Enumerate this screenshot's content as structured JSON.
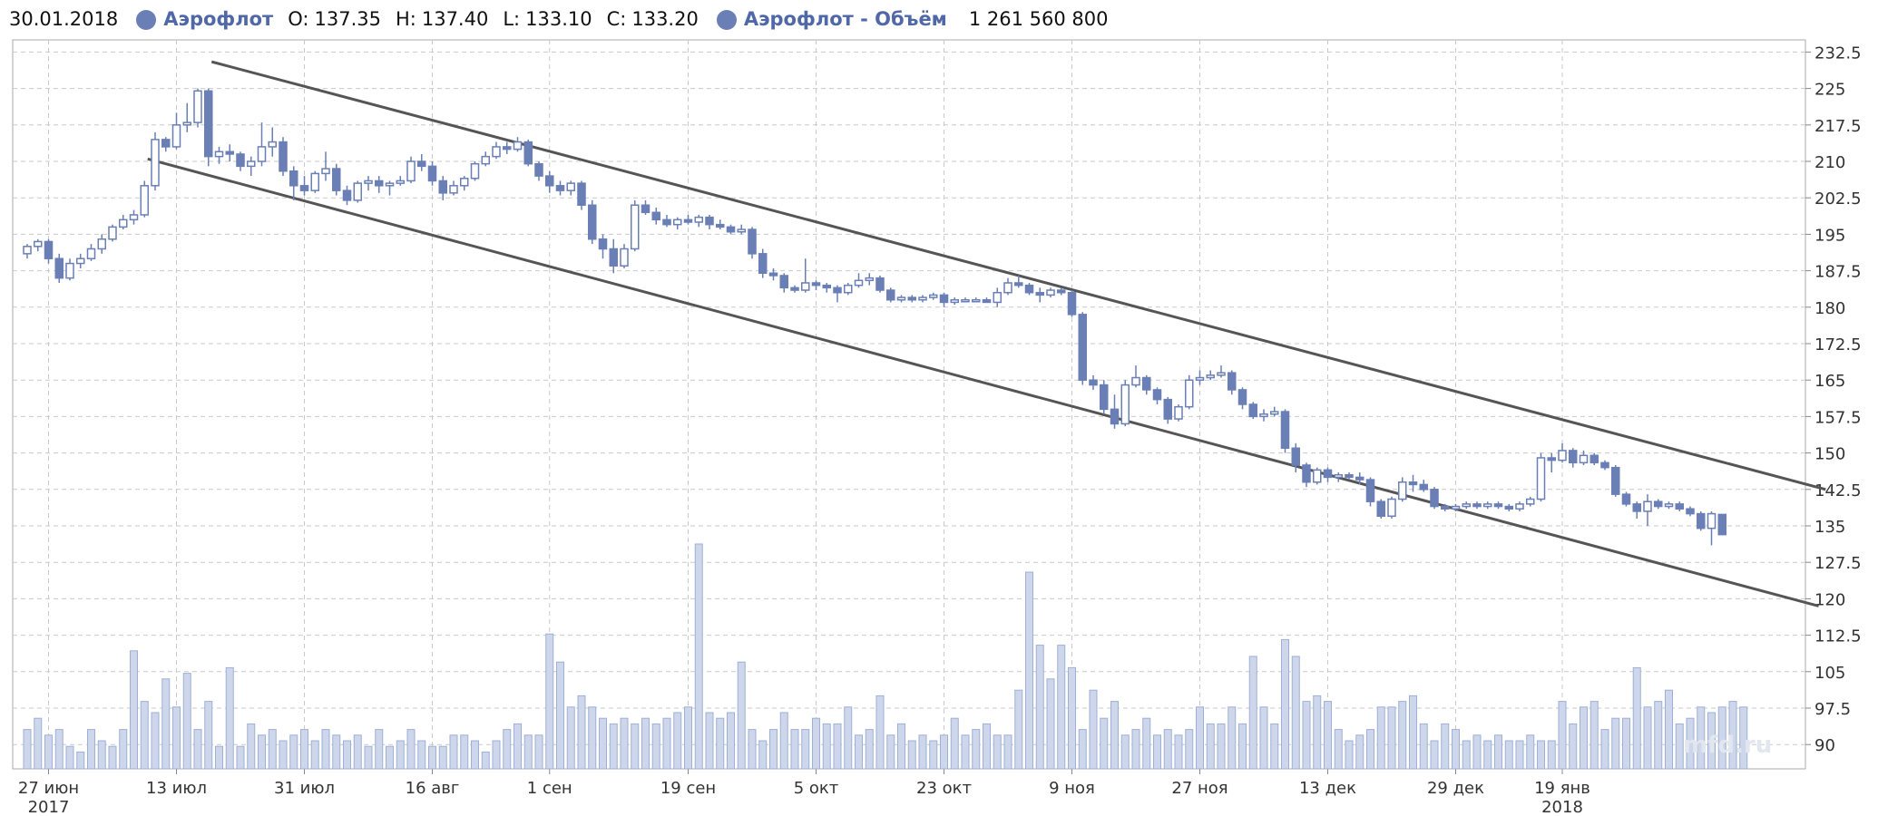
{
  "header": {
    "date": "30.01.2018",
    "series_name": "Аэрофлот",
    "o_label": "O:",
    "o_value": "137.35",
    "h_label": "H:",
    "h_value": "137.40",
    "l_label": "L:",
    "l_value": "133.10",
    "c_label": "C:",
    "c_value": "133.20",
    "volume_name": "Аэрофлот - Объём",
    "volume_value": "1 261 560 800"
  },
  "watermark": "mfd.ru",
  "colors": {
    "candle": "#6a7fb6",
    "volume_fill": "#cdd6ea",
    "volume_stroke": "#9fb0d6",
    "trend": "#555555",
    "grid": "#c9c9c9"
  },
  "chart_data": {
    "type": "candlestick",
    "ylim": [
      85,
      235
    ],
    "y_ticks": [
      "232.5",
      "225",
      "217.5",
      "210",
      "202.5",
      "195",
      "187.5",
      "180",
      "172.5",
      "165",
      "157.5",
      "150",
      "142.5",
      "135",
      "127.5",
      "120",
      "112.5",
      "105",
      "97.5",
      "90"
    ],
    "x_ticks": [
      {
        "label": "27 июн",
        "sub": "2017",
        "index": 2
      },
      {
        "label": "13 июл",
        "sub": "",
        "index": 14
      },
      {
        "label": "31 июл",
        "sub": "",
        "index": 26
      },
      {
        "label": "16 авг",
        "sub": "",
        "index": 38
      },
      {
        "label": "1 сен",
        "sub": "",
        "index": 49
      },
      {
        "label": "19 сен",
        "sub": "",
        "index": 62
      },
      {
        "label": "5 окт",
        "sub": "",
        "index": 74
      },
      {
        "label": "23 окт",
        "sub": "",
        "index": 86
      },
      {
        "label": "9 ноя",
        "sub": "",
        "index": 98
      },
      {
        "label": "27 ноя",
        "sub": "",
        "index": 110
      },
      {
        "label": "13 дек",
        "sub": "",
        "index": 122
      },
      {
        "label": "29 дек",
        "sub": "",
        "index": 134
      },
      {
        "label": "19 янв",
        "sub": "2018",
        "index": 144
      }
    ],
    "candles": [
      [
        191.0,
        193.0,
        190.0,
        192.5
      ],
      [
        192.5,
        194.0,
        191.5,
        193.5
      ],
      [
        193.5,
        194.0,
        189.0,
        190.0
      ],
      [
        190.0,
        191.0,
        185.0,
        186.0
      ],
      [
        186.0,
        190.0,
        185.5,
        189.0
      ],
      [
        189.0,
        191.0,
        188.0,
        190.0
      ],
      [
        190.0,
        193.0,
        189.5,
        192.0
      ],
      [
        192.0,
        195.0,
        191.0,
        194.0
      ],
      [
        194.0,
        197.0,
        193.5,
        196.5
      ],
      [
        196.5,
        199.0,
        196.0,
        198.0
      ],
      [
        198.0,
        200.0,
        197.0,
        199.0
      ],
      [
        199.0,
        206.0,
        198.5,
        205.0
      ],
      [
        205.0,
        216.0,
        204.0,
        214.5
      ],
      [
        214.5,
        215.0,
        212.0,
        213.0
      ],
      [
        213.0,
        220.0,
        212.5,
        217.5
      ],
      [
        217.5,
        222.0,
        216.0,
        218.0
      ],
      [
        218.0,
        225.0,
        217.0,
        224.5
      ],
      [
        224.5,
        225.0,
        209.0,
        211.0
      ],
      [
        211.0,
        213.0,
        209.5,
        212.0
      ],
      [
        212.0,
        213.5,
        210.0,
        211.5
      ],
      [
        211.5,
        212.0,
        208.0,
        209.0
      ],
      [
        209.0,
        211.0,
        207.0,
        210.0
      ],
      [
        210.0,
        218.0,
        209.0,
        213.0
      ],
      [
        213.0,
        217.0,
        211.0,
        214.0
      ],
      [
        214.0,
        215.0,
        207.0,
        208.0
      ],
      [
        208.0,
        209.0,
        202.0,
        205.0
      ],
      [
        205.0,
        207.0,
        203.0,
        204.0
      ],
      [
        204.0,
        208.0,
        203.5,
        207.5
      ],
      [
        207.5,
        212.0,
        206.0,
        208.5
      ],
      [
        208.5,
        209.5,
        203.0,
        204.0
      ],
      [
        204.0,
        205.0,
        201.0,
        202.0
      ],
      [
        202.0,
        206.0,
        201.5,
        205.5
      ],
      [
        205.5,
        207.0,
        204.0,
        206.0
      ],
      [
        206.0,
        207.0,
        203.5,
        205.0
      ],
      [
        205.0,
        206.0,
        203.0,
        205.5
      ],
      [
        205.5,
        207.0,
        205.0,
        206.0
      ],
      [
        206.0,
        211.0,
        205.5,
        210.0
      ],
      [
        210.0,
        211.5,
        208.0,
        209.0
      ],
      [
        209.0,
        210.0,
        205.0,
        206.0
      ],
      [
        206.0,
        207.0,
        202.0,
        203.5
      ],
      [
        203.5,
        206.0,
        203.0,
        205.0
      ],
      [
        205.0,
        207.0,
        204.0,
        206.5
      ],
      [
        206.5,
        210.0,
        206.0,
        209.5
      ],
      [
        209.5,
        212.0,
        209.0,
        211.0
      ],
      [
        211.0,
        214.0,
        210.5,
        213.0
      ],
      [
        213.0,
        214.0,
        211.5,
        212.5
      ],
      [
        212.5,
        215.0,
        212.0,
        214.0
      ],
      [
        214.0,
        214.5,
        209.0,
        209.5
      ],
      [
        209.5,
        210.0,
        206.0,
        207.0
      ],
      [
        207.0,
        208.0,
        203.5,
        205.0
      ],
      [
        205.0,
        206.0,
        203.0,
        204.0
      ],
      [
        204.0,
        206.0,
        203.0,
        205.5
      ],
      [
        205.5,
        206.0,
        200.0,
        201.0
      ],
      [
        201.0,
        202.0,
        193.0,
        194.0
      ],
      [
        194.0,
        195.0,
        190.0,
        192.0
      ],
      [
        192.0,
        194.0,
        187.0,
        188.5
      ],
      [
        188.5,
        193.0,
        188.0,
        192.0
      ],
      [
        192.0,
        202.0,
        191.5,
        201.0
      ],
      [
        201.0,
        202.0,
        199.0,
        199.5
      ],
      [
        199.5,
        200.5,
        197.0,
        198.0
      ],
      [
        198.0,
        199.0,
        196.5,
        197.0
      ],
      [
        197.0,
        198.5,
        196.0,
        198.0
      ],
      [
        198.0,
        199.0,
        197.0,
        197.5
      ],
      [
        197.5,
        199.0,
        196.5,
        198.5
      ],
      [
        198.5,
        199.0,
        196.0,
        197.0
      ],
      [
        197.0,
        198.0,
        196.0,
        196.5
      ],
      [
        196.5,
        197.0,
        195.0,
        195.5
      ],
      [
        195.5,
        197.0,
        195.0,
        196.0
      ],
      [
        196.0,
        196.5,
        190.0,
        191.0
      ],
      [
        191.0,
        192.0,
        186.0,
        187.0
      ],
      [
        187.0,
        188.0,
        185.5,
        186.5
      ],
      [
        186.5,
        187.0,
        183.0,
        184.0
      ],
      [
        184.0,
        184.5,
        183.0,
        183.5
      ],
      [
        183.5,
        190.0,
        183.0,
        185.0
      ],
      [
        185.0,
        185.5,
        183.5,
        184.5
      ],
      [
        184.5,
        185.0,
        183.0,
        184.0
      ],
      [
        184.0,
        184.5,
        181.0,
        183.0
      ],
      [
        183.0,
        185.0,
        182.5,
        184.5
      ],
      [
        184.5,
        187.0,
        184.0,
        185.5
      ],
      [
        185.5,
        187.0,
        184.5,
        186.0
      ],
      [
        186.0,
        186.5,
        183.0,
        183.5
      ],
      [
        183.5,
        184.0,
        181.0,
        181.5
      ],
      [
        181.5,
        182.5,
        181.0,
        182.0
      ],
      [
        182.0,
        182.5,
        181.0,
        181.5
      ],
      [
        181.5,
        182.5,
        181.0,
        182.0
      ],
      [
        182.0,
        183.0,
        181.5,
        182.5
      ],
      [
        182.5,
        183.0,
        180.0,
        181.0
      ],
      [
        181.0,
        182.0,
        180.5,
        181.5
      ],
      [
        181.5,
        182.0,
        181.0,
        181.5
      ],
      [
        181.5,
        182.0,
        181.0,
        181.5
      ],
      [
        181.5,
        182.0,
        181.0,
        181.0
      ],
      [
        181.0,
        184.0,
        180.0,
        183.0
      ],
      [
        183.0,
        186.0,
        182.5,
        185.0
      ],
      [
        185.0,
        186.5,
        184.0,
        184.5
      ],
      [
        184.5,
        185.0,
        182.5,
        183.0
      ],
      [
        183.0,
        184.0,
        181.0,
        182.5
      ],
      [
        182.5,
        184.0,
        182.0,
        183.5
      ],
      [
        183.5,
        184.0,
        182.5,
        183.0
      ],
      [
        183.0,
        183.5,
        178.0,
        178.5
      ],
      [
        178.5,
        179.0,
        164.0,
        165.0
      ],
      [
        165.0,
        166.0,
        163.0,
        164.0
      ],
      [
        164.0,
        165.0,
        158.0,
        159.0
      ],
      [
        159.0,
        162.0,
        155.0,
        156.0
      ],
      [
        156.0,
        165.0,
        155.5,
        164.0
      ],
      [
        164.0,
        168.0,
        163.5,
        165.5
      ],
      [
        165.5,
        166.0,
        162.0,
        163.0
      ],
      [
        163.0,
        163.5,
        160.0,
        161.0
      ],
      [
        161.0,
        161.5,
        156.0,
        157.0
      ],
      [
        157.0,
        160.0,
        156.5,
        159.5
      ],
      [
        159.5,
        166.0,
        159.0,
        165.0
      ],
      [
        165.0,
        167.0,
        164.0,
        165.5
      ],
      [
        165.5,
        167.0,
        165.0,
        166.0
      ],
      [
        166.0,
        168.0,
        165.5,
        166.5
      ],
      [
        166.5,
        167.0,
        162.0,
        163.0
      ],
      [
        163.0,
        163.5,
        159.0,
        160.0
      ],
      [
        160.0,
        160.5,
        157.0,
        157.5
      ],
      [
        157.5,
        159.0,
        156.5,
        158.0
      ],
      [
        158.0,
        159.5,
        157.5,
        158.5
      ],
      [
        158.5,
        159.0,
        150.0,
        151.0
      ],
      [
        151.0,
        152.0,
        146.0,
        147.5
      ],
      [
        147.5,
        148.0,
        143.0,
        144.0
      ],
      [
        144.0,
        147.0,
        143.5,
        146.5
      ],
      [
        146.5,
        147.0,
        144.0,
        145.0
      ],
      [
        145.0,
        146.0,
        144.0,
        145.5
      ],
      [
        145.5,
        146.0,
        144.5,
        145.0
      ],
      [
        145.0,
        146.0,
        143.5,
        144.5
      ],
      [
        144.5,
        145.0,
        139.0,
        140.0
      ],
      [
        140.0,
        140.5,
        136.5,
        137.0
      ],
      [
        137.0,
        141.0,
        136.5,
        140.5
      ],
      [
        140.5,
        145.0,
        140.0,
        144.0
      ],
      [
        144.0,
        145.5,
        142.0,
        143.5
      ],
      [
        143.5,
        144.5,
        142.0,
        142.5
      ],
      [
        142.5,
        143.0,
        138.5,
        139.0
      ],
      [
        139.0,
        139.5,
        138.0,
        138.5
      ],
      [
        138.5,
        139.5,
        138.0,
        139.0
      ],
      [
        139.0,
        140.0,
        138.5,
        139.5
      ],
      [
        139.5,
        140.0,
        138.5,
        139.0
      ],
      [
        139.0,
        140.0,
        138.5,
        139.5
      ],
      [
        139.5,
        140.0,
        138.5,
        139.0
      ],
      [
        139.0,
        139.5,
        138.0,
        138.5
      ],
      [
        138.5,
        140.0,
        138.0,
        139.5
      ],
      [
        139.5,
        141.0,
        139.0,
        140.5
      ],
      [
        140.5,
        150.0,
        140.0,
        149.0
      ],
      [
        149.0,
        150.0,
        146.0,
        148.5
      ],
      [
        148.5,
        152.0,
        148.0,
        150.5
      ],
      [
        150.5,
        151.0,
        147.0,
        148.0
      ],
      [
        148.0,
        150.5,
        147.5,
        149.5
      ],
      [
        149.5,
        150.0,
        147.5,
        148.0
      ],
      [
        148.0,
        148.5,
        146.5,
        147.0
      ],
      [
        147.0,
        147.5,
        141.0,
        141.5
      ],
      [
        141.5,
        142.0,
        139.0,
        139.5
      ],
      [
        139.5,
        140.0,
        136.5,
        138.0
      ],
      [
        138.0,
        141.5,
        135.0,
        140.0
      ],
      [
        140.0,
        140.5,
        138.5,
        139.0
      ],
      [
        139.0,
        140.0,
        138.5,
        139.5
      ],
      [
        139.5,
        140.0,
        138.0,
        138.5
      ],
      [
        138.5,
        139.0,
        137.0,
        137.5
      ],
      [
        137.5,
        138.0,
        134.0,
        134.5
      ],
      [
        134.5,
        138.0,
        131.0,
        137.5
      ],
      [
        137.35,
        137.4,
        133.1,
        133.2
      ]
    ],
    "volume": [
      91,
      93,
      90,
      91,
      88,
      87,
      91,
      89,
      88,
      91,
      105,
      96,
      94,
      100,
      95,
      101,
      91,
      96,
      88,
      102,
      88,
      92,
      90,
      91,
      89,
      90,
      91,
      89,
      91,
      90,
      89,
      90,
      88,
      91,
      88,
      89,
      91,
      89,
      88,
      88,
      90,
      90,
      89,
      87,
      89,
      91,
      92,
      90,
      90,
      108,
      103,
      95,
      97,
      95,
      93,
      92,
      93,
      92,
      93,
      92,
      93,
      94,
      95,
      124,
      94,
      93,
      94,
      103,
      91,
      89,
      91,
      94,
      91,
      91,
      93,
      92,
      92,
      95,
      90,
      91,
      97,
      90,
      92,
      89,
      90,
      89,
      90,
      93,
      90,
      91,
      92,
      90,
      90,
      98,
      119,
      106,
      100,
      106,
      102,
      91,
      98,
      93,
      96,
      90,
      91,
      93,
      90,
      91,
      90,
      91,
      95,
      92,
      92,
      95,
      92,
      104,
      95,
      92,
      107,
      104,
      96,
      97,
      96,
      91,
      89,
      90,
      91,
      95,
      95,
      96,
      97,
      92,
      89,
      92,
      91,
      89,
      90,
      89,
      90,
      89,
      89,
      90,
      89,
      89,
      96,
      92,
      95,
      96,
      91,
      93,
      93,
      102,
      95,
      96,
      98,
      92,
      93,
      95,
      94,
      95,
      96,
      95
    ]
  }
}
